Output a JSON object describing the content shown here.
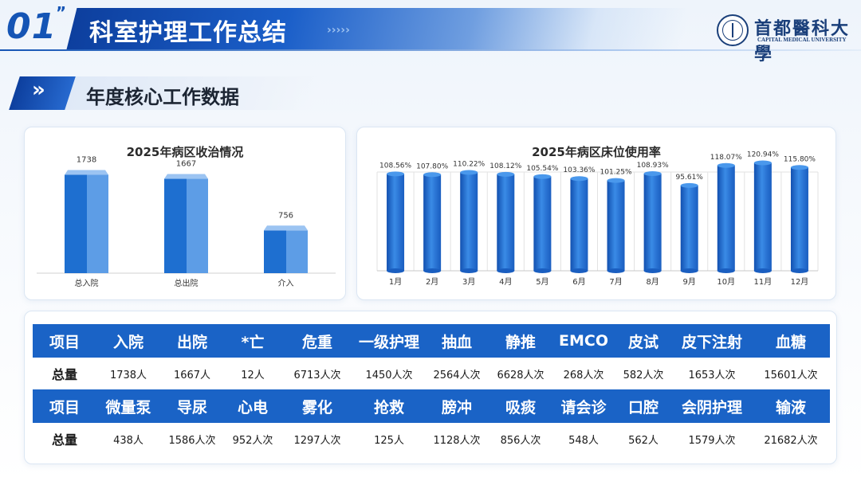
{
  "header": {
    "section_number": "01",
    "section_mark": "”",
    "title": "科室护理工作总结",
    "chevrons": "›››››",
    "logo_cn": "首都醫科大學",
    "logo_en": "CAPITAL MEDICAL UNIVERSITY"
  },
  "subtitle": {
    "arrow": "»",
    "text": "年度核心工作数据"
  },
  "colors": {
    "primary": "#1a63c6",
    "dark_blue": "#0d3f9e",
    "bar_front": "#1e6fd0",
    "bar_side": "#5d9de6",
    "bar_top": "#9cc4f2"
  },
  "chart_data": [
    {
      "type": "bar",
      "title": "2025年病区收治情况",
      "categories": [
        "总入院",
        "总出院",
        "介入"
      ],
      "values": [
        1738,
        1667,
        756
      ],
      "value_labels": [
        "1738",
        "1667",
        "756"
      ],
      "ylim": [
        0,
        1900
      ],
      "grid": false,
      "legend": "none",
      "style": "3d-box"
    },
    {
      "type": "bar",
      "title": "2025年病区床位使用率",
      "categories": [
        "1月",
        "2月",
        "3月",
        "4月",
        "5月",
        "6月",
        "7月",
        "8月",
        "9月",
        "10月",
        "11月",
        "12月"
      ],
      "values": [
        108.56,
        107.8,
        110.22,
        108.12,
        105.54,
        103.36,
        101.25,
        108.93,
        95.61,
        118.07,
        120.94,
        115.8
      ],
      "value_labels": [
        "108.56%",
        "107.80%",
        "110.22%",
        "108.12%",
        "105.54%",
        "103.36%",
        "101.25%",
        "108.93%",
        "95.61%",
        "118.07%",
        "120.94%",
        "115.80%"
      ],
      "ylim": [
        0,
        125
      ],
      "grid": true,
      "legend": "none",
      "style": "cylinder"
    }
  ],
  "table": {
    "rows": [
      {
        "headers": [
          "项目",
          "入院",
          "出院",
          "*亡",
          "危重",
          "一级护理",
          "抽血",
          "静推",
          "EMCO",
          "皮试",
          "皮下注射",
          "血糖"
        ],
        "values": [
          "总量",
          "1738人",
          "1667人",
          "12人",
          "6713人次",
          "1450人次",
          "2564人次",
          "6628人次",
          "268人次",
          "582人次",
          "1653人次",
          "15601人次"
        ]
      },
      {
        "headers": [
          "项目",
          "微量泵",
          "导尿",
          "心电",
          "雾化",
          "抢救",
          "膀冲",
          "吸痰",
          "请会诊",
          "口腔",
          "会阴护理",
          "输液"
        ],
        "values": [
          "总量",
          "438人",
          "1586人次",
          "952人次",
          "1297人次",
          "125人",
          "1128人次",
          "856人次",
          "548人",
          "562人",
          "1579人次",
          "21682人次"
        ]
      }
    ]
  }
}
